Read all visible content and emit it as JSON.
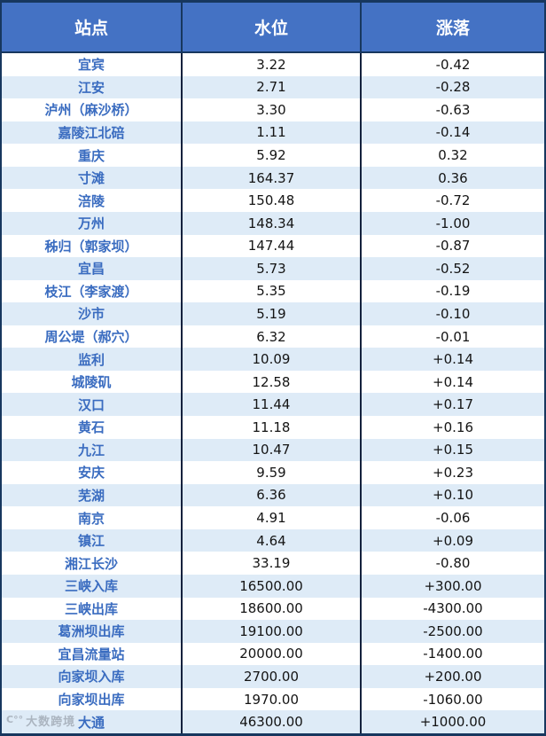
{
  "chart_data": {
    "type": "table",
    "headers": [
      "站点",
      "水位",
      "涨落"
    ],
    "rows": [
      [
        "宜宾",
        "3.22",
        "-0.42"
      ],
      [
        "江安",
        "2.71",
        "-0.28"
      ],
      [
        "泸州（麻沙桥）",
        "3.30",
        "-0.63"
      ],
      [
        "嘉陵江北碚",
        "1.11",
        "-0.14"
      ],
      [
        "重庆",
        "5.92",
        "0.32"
      ],
      [
        "寸滩",
        "164.37",
        "0.36"
      ],
      [
        "涪陵",
        "150.48",
        "-0.72"
      ],
      [
        "万州",
        "148.34",
        "-1.00"
      ],
      [
        "秭归（郭家坝）",
        "147.44",
        "-0.87"
      ],
      [
        "宜昌",
        "5.73",
        "-0.52"
      ],
      [
        "枝江（李家渡）",
        "5.35",
        "-0.19"
      ],
      [
        "沙市",
        "5.19",
        "-0.10"
      ],
      [
        "周公堤（郝穴）",
        "6.32",
        "-0.01"
      ],
      [
        "监利",
        "10.09",
        "+0.14"
      ],
      [
        "城陵矶",
        "12.58",
        "+0.14"
      ],
      [
        "汉口",
        "11.44",
        "+0.17"
      ],
      [
        "黄石",
        "11.18",
        "+0.16"
      ],
      [
        "九江",
        "10.47",
        "+0.15"
      ],
      [
        "安庆",
        "9.59",
        "+0.23"
      ],
      [
        "芜湖",
        "6.36",
        "+0.10"
      ],
      [
        "南京",
        "4.91",
        "-0.06"
      ],
      [
        "镇江",
        "4.64",
        "+0.09"
      ],
      [
        "湘江长沙",
        "33.19",
        "-0.80"
      ],
      [
        "三峡入库",
        "16500.00",
        "+300.00"
      ],
      [
        "三峡出库",
        "18600.00",
        "-4300.00"
      ],
      [
        "葛洲坝出库",
        "19100.00",
        "-2500.00"
      ],
      [
        "宜昌流量站",
        "20000.00",
        "-1400.00"
      ],
      [
        "向家坝入库",
        "2700.00",
        "+200.00"
      ],
      [
        "向家坝出库",
        "1970.00",
        "-1060.00"
      ],
      [
        "大通",
        "46300.00",
        "+1000.00"
      ]
    ]
  },
  "watermark": {
    "logo": "C°°",
    "text": "大数跨境"
  },
  "colors": {
    "header_bg": "#4472C4",
    "header_text": "#FFFFFF",
    "row_bg": "#FFFFFF",
    "row_alt_bg": "#DEEBF7",
    "station_text": "#3A6CC0",
    "value_text": "#141414",
    "outer_border": "#17375E",
    "grid_line": "#14213D",
    "watermark_text": "#9BA3AE"
  }
}
